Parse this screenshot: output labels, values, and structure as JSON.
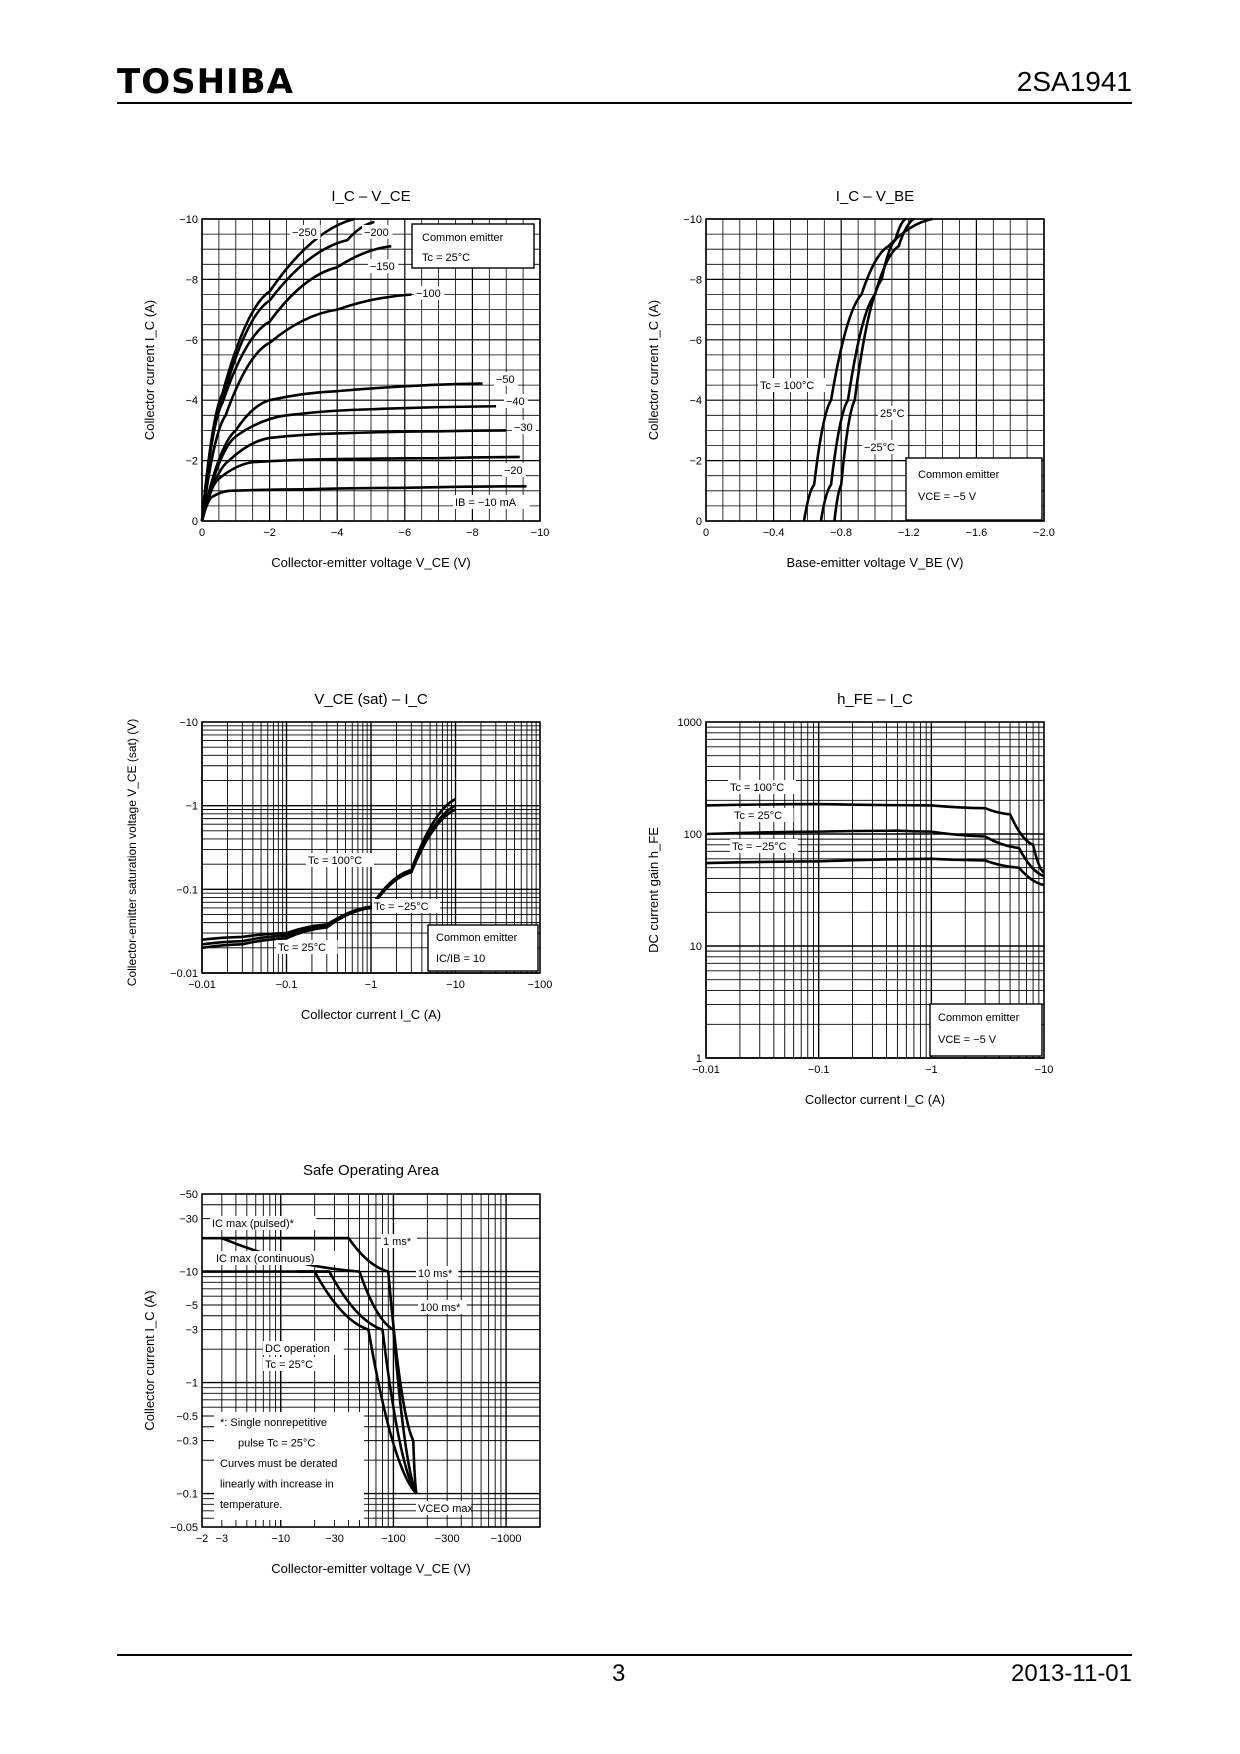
{
  "header": {
    "brand": "TOSHIBA",
    "part_number": "2SA1941"
  },
  "footer": {
    "page": "3",
    "date": "2013-11-01"
  },
  "chart_data": [
    {
      "id": "ic_vce",
      "type": "line",
      "title": "I_C – V_CE",
      "xlabel": "Collector-emitter voltage  V_CE  (V)",
      "ylabel": "Collector current  I_C  (A)",
      "x_ticks": [
        0,
        -2,
        -4,
        -6,
        -8,
        -10
      ],
      "y_ticks": [
        0,
        -2,
        -4,
        -6,
        -8,
        -10
      ],
      "x_tick_labels": [
        "0",
        "−2",
        "−4",
        "−6",
        "−8",
        "−10"
      ],
      "y_tick_labels": [
        "0",
        "−2",
        "−4",
        "−6",
        "−8",
        "−10"
      ],
      "xlim": [
        0,
        -10
      ],
      "ylim": [
        0,
        -10
      ],
      "grid": true,
      "notes": [
        "Common emitter",
        "Tc = 25°C"
      ],
      "series": [
        {
          "name": "IB = −10 mA",
          "x": [
            0,
            -0.3,
            -0.8,
            -3,
            -6,
            -9.6
          ],
          "y": [
            0,
            -0.8,
            -1.0,
            -1.05,
            -1.1,
            -1.15
          ]
        },
        {
          "name": "−20",
          "x": [
            0,
            -0.5,
            -1.5,
            -4,
            -7,
            -9.4
          ],
          "y": [
            0,
            -1.4,
            -1.95,
            -2.05,
            -2.08,
            -2.12
          ]
        },
        {
          "name": "−30",
          "x": [
            0,
            -0.8,
            -2,
            -4,
            -7,
            -9
          ],
          "y": [
            0,
            -2,
            -2.75,
            -2.9,
            -2.97,
            -3.0
          ]
        },
        {
          "name": "−40",
          "x": [
            0,
            -1,
            -2.5,
            -5,
            -8.7
          ],
          "y": [
            0,
            -2.8,
            -3.5,
            -3.7,
            -3.8
          ]
        },
        {
          "name": "−50",
          "x": [
            0,
            -1,
            -2,
            -4,
            -8.3
          ],
          "y": [
            0,
            -3,
            -4,
            -4.3,
            -4.55
          ]
        },
        {
          "name": "−100",
          "x": [
            0,
            -0.7,
            -2,
            -4,
            -6.2
          ],
          "y": [
            0,
            -3.5,
            -5.9,
            -7,
            -7.5
          ]
        },
        {
          "name": "−150",
          "x": [
            0,
            -0.6,
            -2,
            -4,
            -5.6
          ],
          "y": [
            0,
            -3.9,
            -6.6,
            -8.4,
            -9.1
          ]
        },
        {
          "name": "−200",
          "x": [
            0,
            -0.6,
            -2,
            -4.3,
            -5.1
          ],
          "y": [
            0,
            -4,
            -7.3,
            -9.3,
            -9.9
          ]
        },
        {
          "name": "−250",
          "x": [
            0,
            -0.6,
            -2,
            -4.5
          ],
          "y": [
            0,
            -4.2,
            -7.6,
            -10
          ]
        }
      ],
      "curve_labels": [
        "−250",
        "−200",
        "−150",
        "−100",
        "−50",
        "−40",
        "−30",
        "−20",
        "IB = −10 mA"
      ]
    },
    {
      "id": "ic_vbe",
      "type": "line",
      "title": "I_C – V_BE",
      "xlabel": "Base-emitter voltage  V_BE  (V)",
      "ylabel": "Collector current  I_C  (A)",
      "x_ticks": [
        0,
        -0.4,
        -0.8,
        -1.2,
        -1.6,
        -2.0
      ],
      "y_ticks": [
        0,
        -2,
        -4,
        -6,
        -8,
        -10
      ],
      "x_tick_labels": [
        "0",
        "−0.4",
        "−0.8",
        "−1.2",
        "−1.6",
        "−2.0"
      ],
      "y_tick_labels": [
        "0",
        "−2",
        "−4",
        "−6",
        "−8",
        "−10"
      ],
      "xlim": [
        0,
        -2.0
      ],
      "ylim": [
        0,
        -10
      ],
      "grid": true,
      "notes": [
        "Common emitter",
        "VCE = −5 V"
      ],
      "series": [
        {
          "name": "Tc = 100°C",
          "x": [
            -0.58,
            -0.64,
            -0.74,
            -0.92,
            -1.08,
            -1.34
          ],
          "y": [
            0,
            -1.2,
            -4,
            -7.5,
            -9.1,
            -10
          ]
        },
        {
          "name": "25°C",
          "x": [
            -0.68,
            -0.74,
            -0.84,
            -1.0,
            -1.14,
            -1.23
          ],
          "y": [
            0,
            -1.2,
            -4,
            -7.5,
            -9.1,
            -10
          ]
        },
        {
          "name": "−25°C",
          "x": [
            -0.76,
            -0.8,
            -0.88,
            -1.04,
            -1.12,
            -1.18
          ],
          "y": [
            0,
            -1.2,
            -4,
            -8,
            -9.3,
            -10
          ]
        }
      ],
      "curve_labels": [
        "Tc = 100°C",
        "25°C",
        "−25°C"
      ]
    },
    {
      "id": "vcesat_ic",
      "type": "line",
      "title": "V_CE (sat) – I_C",
      "xlabel": "Collector current  I_C  (A)",
      "ylabel": "Collector-emitter saturation voltage V_CE (sat)  (V)",
      "xscale": "log",
      "yscale": "log",
      "x_ticks": [
        -0.01,
        -0.1,
        -1,
        -10,
        -100
      ],
      "y_ticks": [
        -0.01,
        -0.1,
        -1,
        -10
      ],
      "x_tick_labels": [
        "−0.01",
        "−0.1",
        "−1",
        "−10",
        "−100"
      ],
      "y_tick_labels": [
        "−0.01",
        "−0.1",
        "−1",
        "−10"
      ],
      "xlim": [
        -0.01,
        -100
      ],
      "ylim": [
        -0.01,
        -10
      ],
      "grid": true,
      "notes": [
        "Common emitter",
        "IC/IB = 10"
      ],
      "series": [
        {
          "name": "Tc = 100°C",
          "x": [
            -0.01,
            -0.03,
            -0.1,
            -0.3,
            -1,
            -3,
            -10
          ],
          "y": [
            -0.025,
            -0.027,
            -0.03,
            -0.038,
            -0.06,
            -0.16,
            -0.9
          ]
        },
        {
          "name": "Tc = 25°C",
          "x": [
            -0.01,
            -0.03,
            -0.1,
            -0.3,
            -1,
            -3,
            -10
          ],
          "y": [
            -0.022,
            -0.024,
            -0.028,
            -0.037,
            -0.062,
            -0.17,
            -1.2
          ]
        },
        {
          "name": "Tc = −25°C",
          "x": [
            -0.01,
            -0.03,
            -0.1,
            -0.3,
            -1,
            -3,
            -10
          ],
          "y": [
            -0.02,
            -0.022,
            -0.026,
            -0.035,
            -0.06,
            -0.16,
            -1.0
          ]
        }
      ],
      "curve_labels": [
        "Tc = 100°C",
        "Tc = −25°C",
        "Tc = 25°C"
      ]
    },
    {
      "id": "hfe_ic",
      "type": "line",
      "title": "h_FE – I_C",
      "xlabel": "Collector current  I_C  (A)",
      "ylabel": "DC current gain  h_FE",
      "xscale": "log",
      "yscale": "log",
      "x_ticks": [
        -0.01,
        -0.1,
        -1,
        -10
      ],
      "y_ticks": [
        1,
        10,
        100,
        1000
      ],
      "x_tick_labels": [
        "−0.01",
        "−0.1",
        "−1",
        "−10"
      ],
      "y_tick_labels": [
        "1",
        "10",
        "100",
        "1000"
      ],
      "xlim": [
        -0.01,
        -10
      ],
      "ylim": [
        1,
        1000
      ],
      "grid": true,
      "notes": [
        "Common emitter",
        "VCE = −5 V"
      ],
      "series": [
        {
          "name": "Tc = 100°C",
          "x": [
            -0.01,
            -0.1,
            -1,
            -3,
            -5,
            -8,
            -10
          ],
          "y": [
            180,
            185,
            180,
            170,
            150,
            80,
            45
          ]
        },
        {
          "name": "Tc = 25°C",
          "x": [
            -0.01,
            -0.1,
            -0.5,
            -1,
            -3,
            -6,
            -10
          ],
          "y": [
            100,
            105,
            107,
            105,
            95,
            75,
            42
          ]
        },
        {
          "name": "Tc = −25°C",
          "x": [
            -0.01,
            -0.1,
            -1,
            -3,
            -6,
            -10
          ],
          "y": [
            55,
            57,
            60,
            58,
            50,
            35
          ]
        }
      ],
      "curve_labels": [
        "Tc = 100°C",
        "Tc = 25°C",
        "Tc = −25°C"
      ]
    },
    {
      "id": "soa",
      "type": "line",
      "title": "Safe Operating Area",
      "xlabel": "Collector-emitter voltage  V_CE  (V)",
      "ylabel": "Collector current  I_C  (A)",
      "xscale": "log",
      "yscale": "log",
      "x_ticks": [
        -2,
        -3,
        -10,
        -30,
        -100,
        -300,
        -1000
      ],
      "y_ticks": [
        -0.05,
        -0.1,
        -0.3,
        -0.5,
        -1,
        -3,
        -5,
        -10,
        -30,
        -50
      ],
      "x_tick_labels": [
        "−2",
        "−3",
        "−10",
        "−30",
        "−100",
        "−300",
        "−1000"
      ],
      "y_tick_labels": [
        "−0.05",
        "−0.1",
        "−0.3",
        "−0.5",
        "−1",
        "−3",
        "−5",
        "−10",
        "−30",
        "−50"
      ],
      "xlim": [
        -2,
        -2000
      ],
      "ylim": [
        -0.05,
        -50
      ],
      "grid": true,
      "labels": {
        "ic_pulsed": "IC max (pulsed)*",
        "ic_continuous": "IC max (continuous)",
        "t1ms": "1 ms*",
        "t10ms": "10 ms*",
        "t100ms": "100 ms*",
        "dc": "DC operation",
        "dc_tc": "Tc = 25°C",
        "vceo": "VCEO max",
        "note1": "*:  Single nonrepetitive",
        "note2": "pulse    Tc = 25°C",
        "note3": "Curves must be derated",
        "note4": "linearly with increase in",
        "note5": "temperature."
      },
      "series": [
        {
          "name": "1 ms*",
          "x": [
            -3,
            -40,
            -90,
            -150,
            -160
          ],
          "y": [
            -20,
            -20,
            -10,
            -0.3,
            -0.1
          ]
        },
        {
          "name": "10 ms*",
          "x": [
            -3,
            -50,
            -100,
            -160
          ],
          "y": [
            -20,
            -10,
            -3,
            -0.1
          ]
        },
        {
          "name": "100 ms*",
          "x": [
            -14,
            -27,
            -80,
            -160
          ],
          "y": [
            -10,
            -10,
            -3,
            -0.1
          ]
        },
        {
          "name": "DC operation",
          "x": [
            -14,
            -20,
            -60,
            -160
          ],
          "y": [
            -10,
            -10,
            -3,
            -0.1
          ]
        }
      ]
    }
  ]
}
